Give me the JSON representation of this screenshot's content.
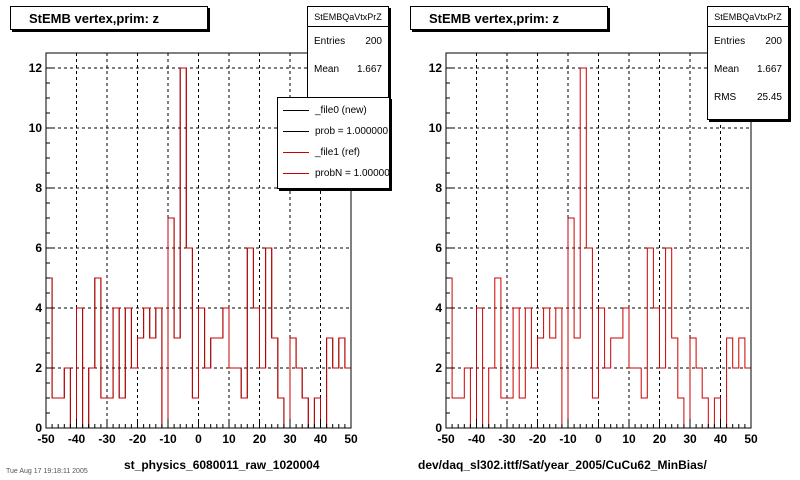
{
  "chart_data": [
    {
      "type": "bar",
      "style": "step-histogram",
      "title": "StEMB  vertex,prim: z",
      "xlabel": "st_physics_6080011_raw_1020004",
      "xlim": [
        -50,
        50
      ],
      "ylim": [
        0,
        12.5
      ],
      "xticks": [
        -50,
        -40,
        -30,
        -20,
        -10,
        0,
        10,
        20,
        30,
        40,
        50
      ],
      "yticks": [
        0,
        2,
        4,
        6,
        8,
        10,
        12
      ],
      "grid": true,
      "bin_width": 2,
      "bin_start": -50,
      "series": [
        {
          "name": "_file0 (new)",
          "color": "#000000",
          "values": [
            5,
            1,
            1,
            2,
            0,
            4,
            0,
            2,
            5,
            1,
            1,
            4,
            1,
            4,
            2,
            3,
            4,
            3,
            4,
            0,
            7,
            3,
            12,
            6,
            1,
            4,
            2,
            3,
            3,
            4,
            2,
            2,
            1,
            6,
            4,
            2,
            6,
            3,
            1,
            0,
            3,
            2,
            1,
            0,
            1,
            0,
            3,
            2,
            3,
            2
          ]
        },
        {
          "name": "_file1 (ref)",
          "color": "#cc0000",
          "values": [
            5,
            1,
            1,
            2,
            0,
            4,
            0,
            2,
            5,
            1,
            1,
            4,
            1,
            4,
            2,
            3,
            4,
            3,
            4,
            0,
            7,
            3,
            12,
            6,
            1,
            4,
            2,
            3,
            3,
            4,
            2,
            2,
            1,
            6,
            4,
            2,
            6,
            3,
            1,
            0,
            3,
            2,
            1,
            0,
            1,
            0,
            3,
            2,
            3,
            2
          ]
        }
      ],
      "stats": {
        "name": "StEMBQaVtxPrZ",
        "entries_label": "Entries",
        "entries": "200",
        "mean_label": "Mean",
        "mean": "1.667"
      },
      "legend": {
        "placement": "top-right",
        "entries": [
          {
            "label": "_file0 (new)",
            "color": "#000000"
          },
          {
            "label": "prob = 1.000000",
            "color": "#000000"
          },
          {
            "label": "_file1 (ref)",
            "color": "#cc0000"
          },
          {
            "label": "probN = 1.000000",
            "color": "#cc0000"
          }
        ]
      }
    },
    {
      "type": "bar",
      "style": "step-histogram",
      "title": "StEMB  vertex,prim: z",
      "xlabel": "dev/daq_sl302.ittf/Sat/year_2005/CuCu62_MinBias/",
      "xlim": [
        -50,
        50
      ],
      "ylim": [
        0,
        12.5
      ],
      "xticks": [
        -50,
        -40,
        -30,
        -20,
        -10,
        0,
        10,
        20,
        30,
        40,
        50
      ],
      "yticks": [
        0,
        2,
        4,
        6,
        8,
        10,
        12
      ],
      "grid": true,
      "bin_width": 2,
      "bin_start": -50,
      "series": [
        {
          "color": "#cc0000",
          "values": [
            5,
            1,
            1,
            2,
            0,
            4,
            0,
            2,
            5,
            1,
            1,
            4,
            1,
            4,
            2,
            3,
            4,
            3,
            4,
            0,
            7,
            3,
            12,
            6,
            1,
            4,
            2,
            3,
            3,
            4,
            2,
            2,
            1,
            6,
            4,
            2,
            6,
            3,
            1,
            0,
            3,
            2,
            1,
            0,
            1,
            0,
            3,
            2,
            3,
            2
          ]
        }
      ],
      "stats": {
        "name": "StEMBQaVtxPrZ",
        "entries_label": "Entries",
        "entries": "200",
        "mean_label": "Mean",
        "mean": "1.667",
        "rms_label": "RMS",
        "rms": "25.45"
      }
    }
  ],
  "footnote": "Tue Aug 17 19:18:11 2005"
}
